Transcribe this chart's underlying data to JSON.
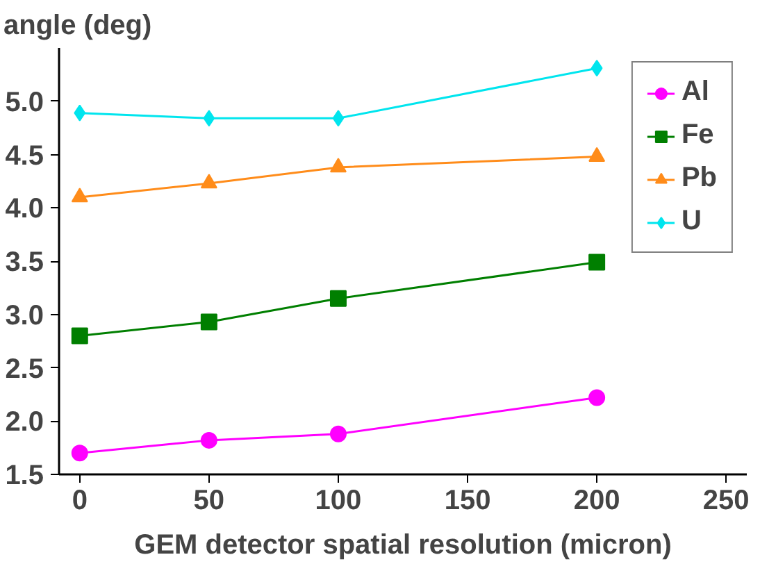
{
  "chart_data": {
    "type": "line",
    "xlabel": "GEM detector spatial resolution (micron)",
    "ylabel": "angle (deg)",
    "x": [
      0,
      50,
      100,
      200
    ],
    "series": [
      {
        "name": "Al",
        "color": "#ff00ff",
        "marker": "circle",
        "values": [
          1.7,
          1.82,
          1.88,
          2.22
        ]
      },
      {
        "name": "Fe",
        "color": "#007f00",
        "marker": "square",
        "values": [
          2.8,
          2.93,
          3.15,
          3.49
        ]
      },
      {
        "name": "Pb",
        "color": "#ff8c1a",
        "marker": "triangle",
        "values": [
          4.1,
          4.23,
          4.38,
          4.48
        ]
      },
      {
        "name": "U",
        "color": "#00e5ee",
        "marker": "diamond",
        "values": [
          4.89,
          4.84,
          4.84,
          5.31
        ]
      }
    ],
    "xlim": [
      -8,
      258
    ],
    "ylim": [
      1.5,
      5.5
    ],
    "xticks": [
      0,
      50,
      100,
      150,
      200,
      250
    ],
    "yticks": [
      1.5,
      {
        "value": 2,
        "label": "2.0"
      },
      2.5,
      {
        "value": 3,
        "label": "3.0"
      },
      3.5,
      {
        "value": 4,
        "label": "4.0"
      },
      4.5,
      {
        "value": 5,
        "label": "5.0"
      }
    ],
    "grid": false,
    "legend": "top right"
  }
}
